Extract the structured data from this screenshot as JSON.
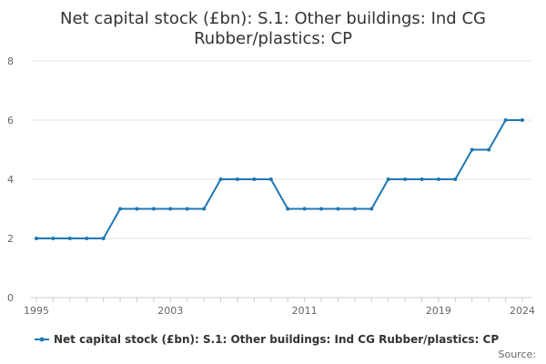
{
  "chart_data": {
    "type": "line",
    "title": "Net capital stock (£bn): S.1: Other buildings: Ind CG Rubber/plastics: CP",
    "title_lines": [
      "Net capital stock (£bn): S.1: Other buildings: Ind CG",
      "Rubber/plastics: CP"
    ],
    "xlabel": "",
    "ylabel": "",
    "xlim": [
      1995,
      2024
    ],
    "ylim": [
      0,
      8
    ],
    "x_ticks": [
      1995,
      2003,
      2011,
      2019,
      2024
    ],
    "y_ticks": [
      0,
      2,
      4,
      6,
      8
    ],
    "grid": true,
    "legend_position": "bottom",
    "series": [
      {
        "name": "Net capital stock (£bn): S.1: Other buildings: Ind CG Rubber/plastics: CP",
        "color": "#1f77b4",
        "x": [
          1995,
          1996,
          1997,
          1998,
          1999,
          2000,
          2001,
          2002,
          2003,
          2004,
          2005,
          2006,
          2007,
          2008,
          2009,
          2010,
          2011,
          2012,
          2013,
          2014,
          2015,
          2016,
          2017,
          2018,
          2019,
          2020,
          2021,
          2022,
          2023,
          2024
        ],
        "values": [
          2,
          2,
          2,
          2,
          2,
          3,
          3,
          3,
          3,
          3,
          3,
          4,
          4,
          4,
          4,
          3,
          3,
          3,
          3,
          3,
          3,
          4,
          4,
          4,
          4,
          4,
          5,
          5,
          6,
          6
        ]
      }
    ],
    "source_label": "Source:"
  }
}
